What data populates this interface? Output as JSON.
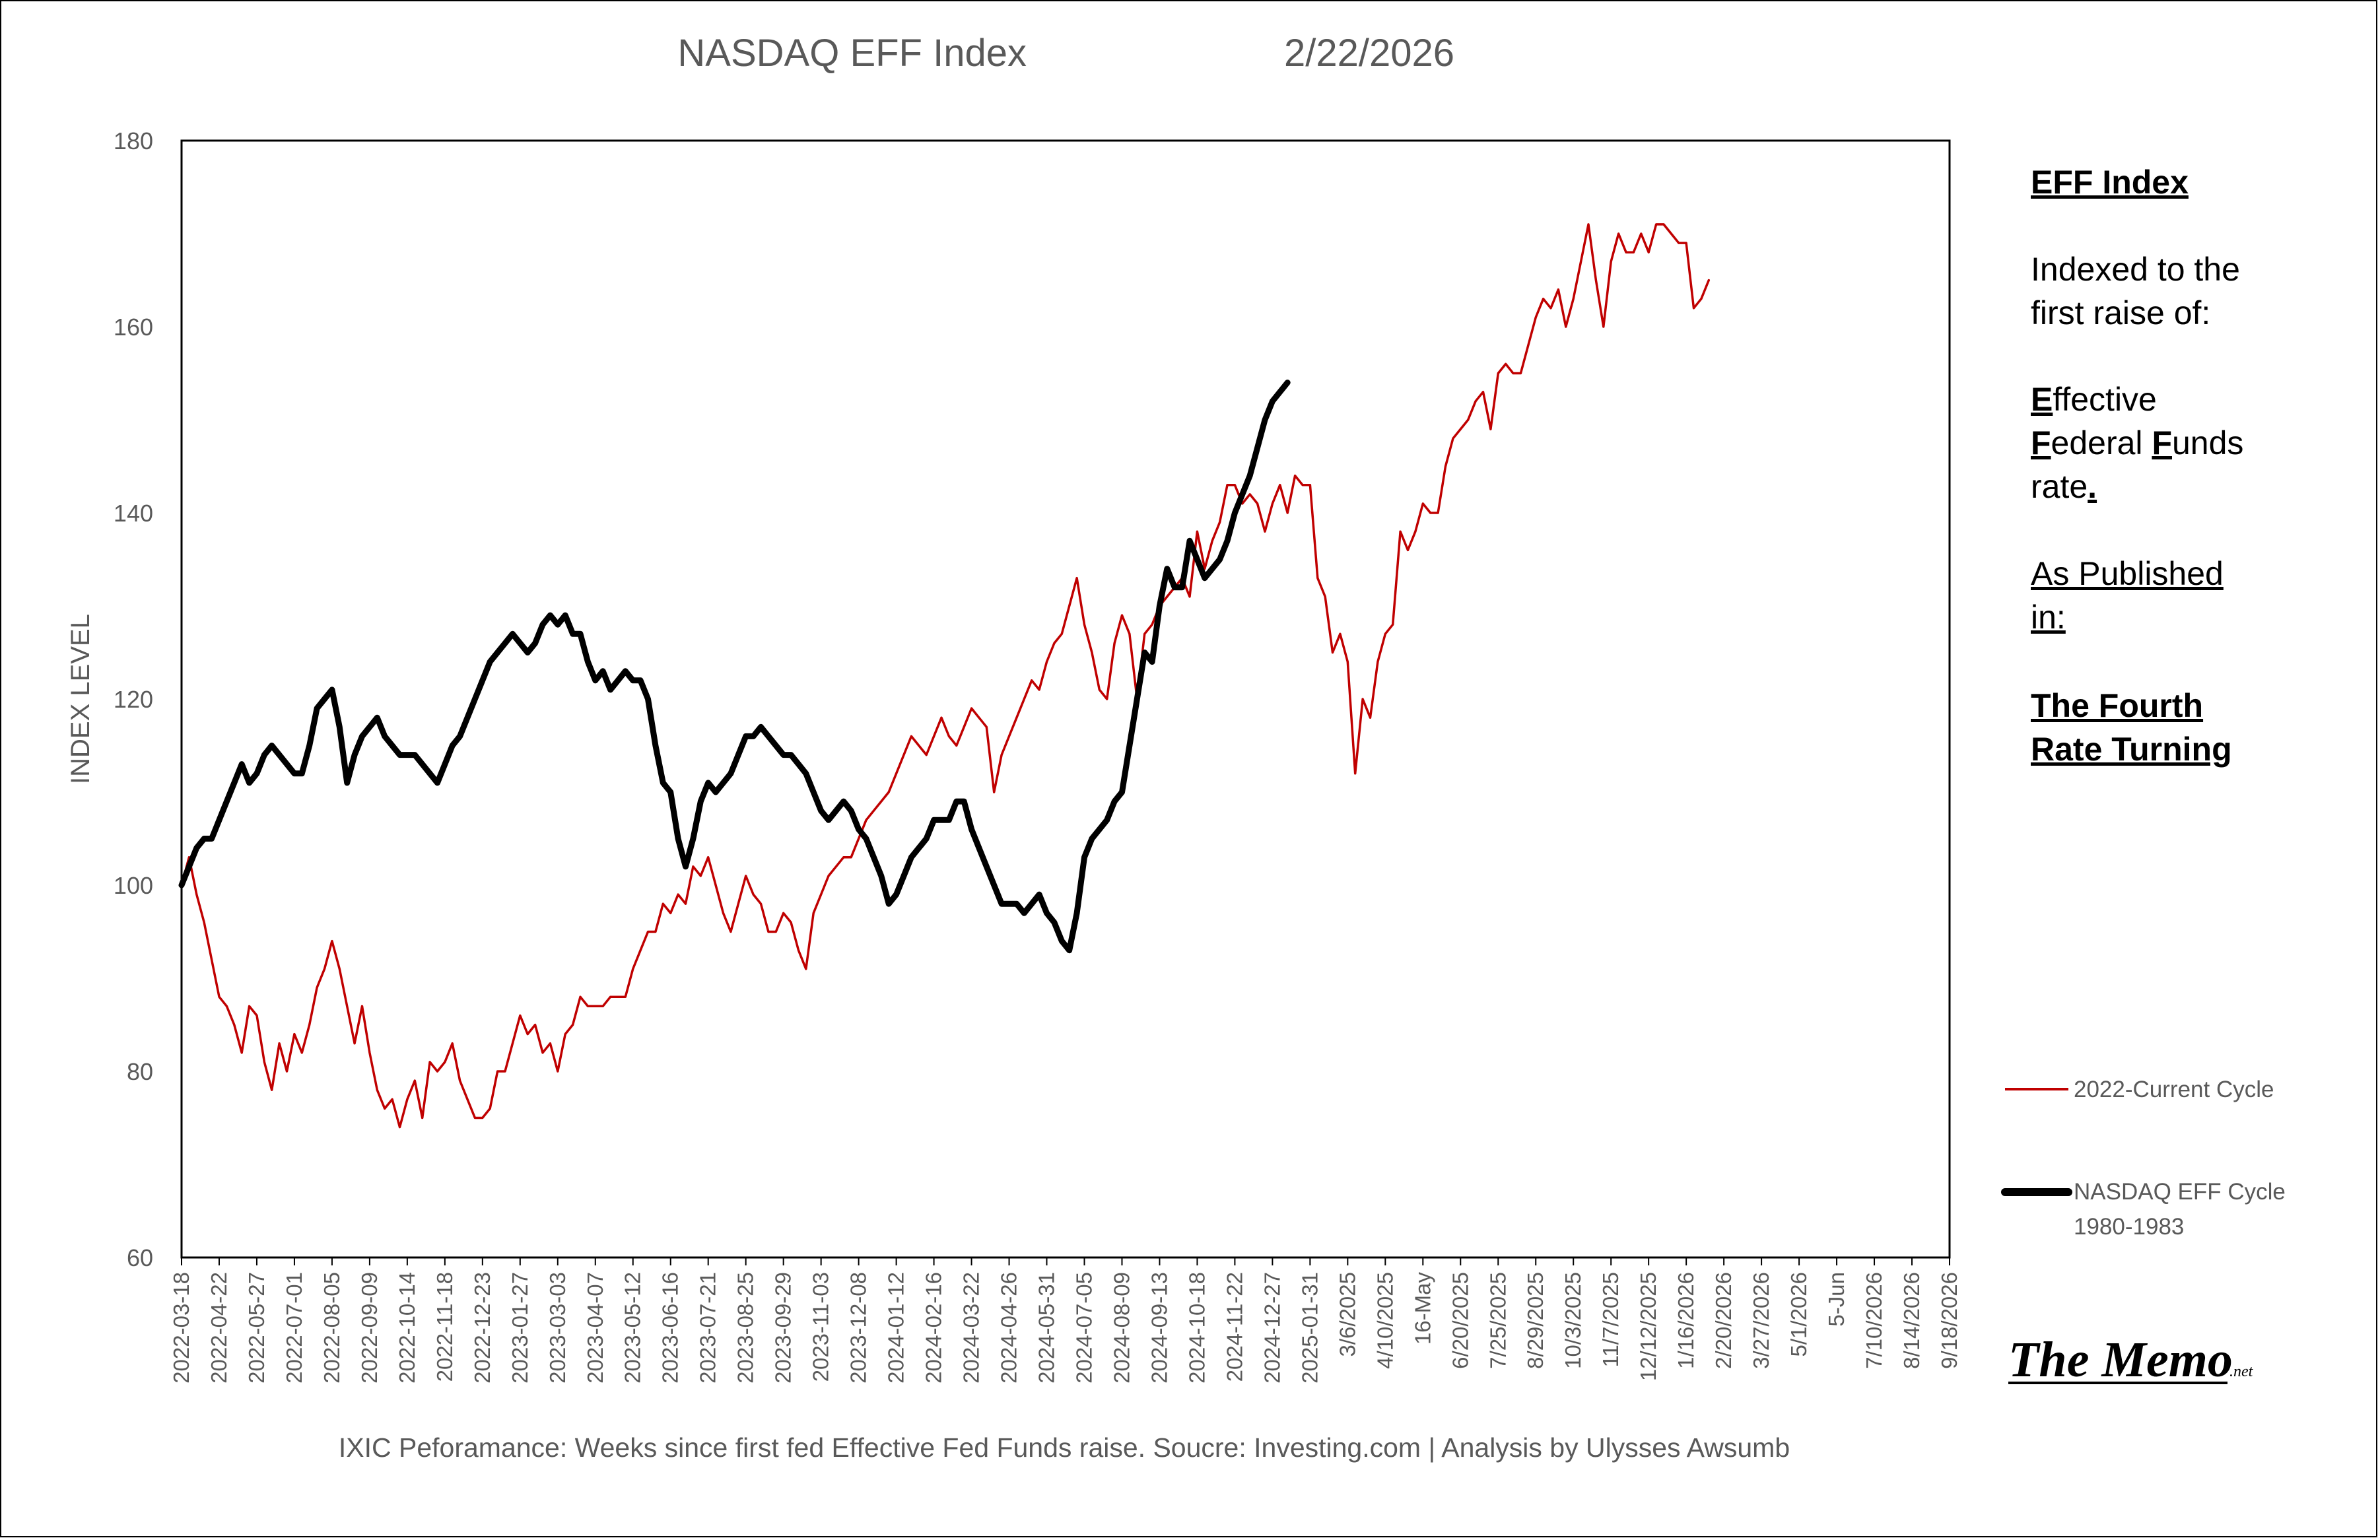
{
  "chart_data": {
    "type": "line",
    "title": "NASDAQ EFF Index",
    "title_date": "2/22/2026",
    "ylabel": "INDEX LEVEL",
    "ylim": [
      60,
      180
    ],
    "yticks": [
      60,
      80,
      100,
      120,
      140,
      160,
      180
    ],
    "grid": false,
    "legend_position": "right",
    "xlabels": [
      "2022-03-18",
      "2022-04-22",
      "2022-05-27",
      "2022-07-01",
      "2022-08-05",
      "2022-09-09",
      "2022-10-14",
      "2022-11-18",
      "2022-12-23",
      "2023-01-27",
      "2023-03-03",
      "2023-04-07",
      "2023-05-12",
      "2023-06-16",
      "2023-07-21",
      "2023-08-25",
      "2023-09-29",
      "2023-11-03",
      "2023-12-08",
      "2024-01-12",
      "2024-02-16",
      "2024-03-22",
      "2024-04-26",
      "2024-05-31",
      "2024-07-05",
      "2024-08-09",
      "2024-09-13",
      "2024-10-18",
      "2024-11-22",
      "2024-12-27",
      "2025-01-31",
      "3/6/2025",
      "4/10/2025",
      "16-May",
      "6/20/2025",
      "7/25/2025",
      "8/29/2025",
      "10/3/2025",
      "11/7/2025",
      "12/12/2025",
      "1/16/2026",
      "2/20/2026",
      "3/27/2026",
      "5/1/2026",
      "5-Jun",
      "7/10/2026",
      "8/14/2026",
      "9/18/2026"
    ],
    "series": [
      {
        "name": "2022-Current Cycle",
        "color": "#c00000",
        "values": [
          100,
          103,
          99,
          96,
          92,
          88,
          87,
          85,
          82,
          87,
          86,
          81,
          78,
          83,
          80,
          84,
          82,
          85,
          89,
          91,
          94,
          91,
          87,
          83,
          87,
          82,
          78,
          76,
          77,
          74,
          77,
          79,
          75,
          81,
          80,
          81,
          83,
          79,
          77,
          75,
          75,
          76,
          80,
          80,
          83,
          86,
          84,
          85,
          82,
          83,
          80,
          84,
          85,
          88,
          87,
          87,
          87,
          88,
          88,
          88,
          91,
          93,
          95,
          95,
          98,
          97,
          99,
          98,
          102,
          101,
          103,
          100,
          97,
          95,
          98,
          101,
          99,
          98,
          95,
          95,
          97,
          96,
          93,
          91,
          97,
          99,
          101,
          102,
          103,
          103,
          105,
          107,
          108,
          109,
          110,
          112,
          114,
          116,
          115,
          114,
          116,
          118,
          116,
          115,
          117,
          119,
          118,
          117,
          110,
          114,
          116,
          118,
          120,
          122,
          121,
          124,
          126,
          127,
          130,
          133,
          128,
          125,
          121,
          120,
          126,
          129,
          127,
          120,
          127,
          128,
          130,
          131,
          132,
          133,
          131,
          138,
          134,
          137,
          139,
          143,
          143,
          141,
          142,
          141,
          138,
          141,
          143,
          140,
          144,
          143,
          143,
          133,
          131,
          125,
          127,
          124,
          112,
          120,
          118,
          124,
          127,
          128,
          138,
          136,
          138,
          141,
          140,
          140,
          145,
          148,
          149,
          150,
          152,
          153,
          149,
          155,
          156,
          155,
          155,
          158,
          161,
          163,
          162,
          164,
          160,
          163,
          167,
          171,
          165,
          160,
          167,
          170,
          168,
          168,
          170,
          168,
          171,
          171,
          170,
          169,
          169,
          162,
          163,
          165
        ]
      },
      {
        "name": "NASDAQ EFF Cycle 1980-1983",
        "color": "#000000",
        "values": [
          100,
          102,
          104,
          105,
          105,
          107,
          109,
          111,
          113,
          111,
          112,
          114,
          115,
          114,
          113,
          112,
          112,
          115,
          119,
          120,
          121,
          117,
          111,
          114,
          116,
          117,
          118,
          116,
          115,
          114,
          114,
          114,
          113,
          112,
          111,
          113,
          115,
          116,
          118,
          120,
          122,
          124,
          125,
          126,
          127,
          126,
          125,
          126,
          128,
          129,
          128,
          129,
          127,
          127,
          124,
          122,
          123,
          121,
          122,
          123,
          122,
          122,
          120,
          115,
          111,
          110,
          105,
          102,
          105,
          109,
          111,
          110,
          111,
          112,
          114,
          116,
          116,
          117,
          116,
          115,
          114,
          114,
          113,
          112,
          110,
          108,
          107,
          108,
          109,
          108,
          106,
          105,
          103,
          101,
          98,
          99,
          101,
          103,
          104,
          105,
          107,
          107,
          107,
          109,
          109,
          106,
          104,
          102,
          100,
          98,
          98,
          98,
          97,
          98,
          99,
          97,
          96,
          94,
          93,
          97,
          103,
          105,
          106,
          107,
          109,
          110,
          115,
          120,
          125,
          124,
          130,
          134,
          132,
          132,
          137,
          135,
          133,
          134,
          135,
          137,
          140,
          142,
          144,
          147,
          150,
          152,
          153,
          154
        ]
      }
    ]
  },
  "legend": {
    "current_label": "2022-Current Cycle",
    "hist_label_line1": "NASDAQ EFF Cycle",
    "hist_label_line2": "1980-1983"
  },
  "notes": {
    "heading": "EFF Index",
    "indexed_line1": "Indexed to the",
    "indexed_line2": "first raise of:",
    "eff_E": "E",
    "eff_ffective": "ffective",
    "eff_F1": "F",
    "eff_ederal": "ederal ",
    "eff_F2": "F",
    "eff_unds": "unds",
    "eff_rate": "rate",
    "eff_dot": ".",
    "published_line1": "As Published",
    "published_line2": "in:",
    "pub_name_line1": "The Fourth",
    "pub_name_line2": "Rate Turning"
  },
  "footer": "IXIC Peforamance: Weeks since first fed Effective Fed Funds raise.   Soucre: Investing.com | Analysis by Ulysses Awsumb",
  "logo": {
    "main": "The Memo",
    "suffix": ".net"
  }
}
